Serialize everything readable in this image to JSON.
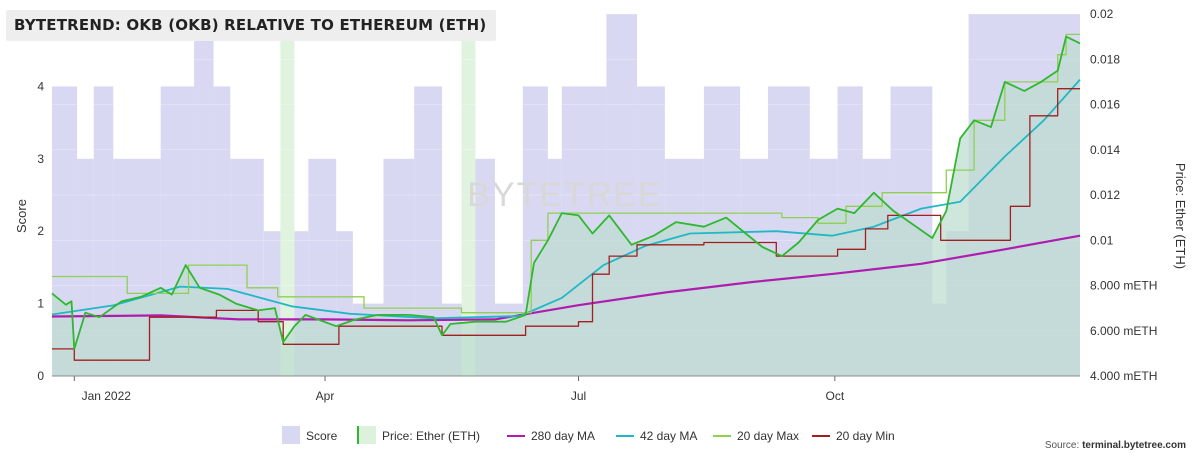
{
  "title": "BYTETREND: OKB (OKB) RELATIVE TO ETHEREUM (ETH)",
  "watermark": "BYTETREE",
  "source_prefix": "Source: ",
  "source_site": "terminal.bytetree.com",
  "chart_data": {
    "type": "line",
    "x_tick_labels": [
      "Jan 2022",
      "Apr",
      "Jul",
      "Oct"
    ],
    "x_tick_dates": [
      "2022-01-01",
      "2022-04-01",
      "2022-07-01",
      "2022-10-01"
    ],
    "x_range": [
      "2021-12-24",
      "2022-12-28"
    ],
    "y_left": {
      "label": "Score",
      "range": [
        0,
        5
      ],
      "ticks": [
        0,
        1,
        2,
        3,
        4
      ]
    },
    "y_right": {
      "label": "Price: Ether (ETH)",
      "range": [
        0.004,
        0.02
      ],
      "ticks": [
        0.004,
        0.006,
        0.008,
        0.01,
        0.012,
        0.014,
        0.016,
        0.018,
        0.02
      ],
      "tick_labels": [
        "4.000 mETH",
        "6.000 mETH",
        "8.000 mETH",
        "0.01",
        "0.012",
        "0.014",
        "0.016",
        "0.018",
        "0.02"
      ]
    },
    "legend_position": "bottom",
    "legend": [
      "Score",
      "Price: Ether (ETH)",
      "280 day MA",
      "42 day MA",
      "20 day Max",
      "20 day Min"
    ],
    "colors": {
      "score": "#d8d8f2",
      "price": "#2fb82f",
      "price_fill": "#bcdccf",
      "ma280": "#b01cb0",
      "ma42": "#21b8c6",
      "max20": "#8fd14f",
      "min20": "#a31f1f",
      "score_low": "#dcf2dc"
    },
    "score_series": [
      {
        "date": "2021-12-24",
        "score": 4
      },
      {
        "date": "2022-01-02",
        "score": 3
      },
      {
        "date": "2022-01-08",
        "score": 4
      },
      {
        "date": "2022-01-15",
        "score": 3
      },
      {
        "date": "2022-02-01",
        "score": 4
      },
      {
        "date": "2022-02-13",
        "score": 5
      },
      {
        "date": "2022-02-20",
        "score": 4
      },
      {
        "date": "2022-02-26",
        "score": 3
      },
      {
        "date": "2022-03-10",
        "score": 2
      },
      {
        "date": "2022-03-16",
        "score": 0
      },
      {
        "date": "2022-03-21",
        "score": 2
      },
      {
        "date": "2022-03-26",
        "score": 3
      },
      {
        "date": "2022-04-05",
        "score": 2
      },
      {
        "date": "2022-04-11",
        "score": 1
      },
      {
        "date": "2022-04-22",
        "score": 3
      },
      {
        "date": "2022-05-03",
        "score": 4
      },
      {
        "date": "2022-05-13",
        "score": 1
      },
      {
        "date": "2022-05-20",
        "score": 0
      },
      {
        "date": "2022-05-25",
        "score": 3
      },
      {
        "date": "2022-06-01",
        "score": 1
      },
      {
        "date": "2022-06-11",
        "score": 4
      },
      {
        "date": "2022-06-20",
        "score": 3
      },
      {
        "date": "2022-06-25",
        "score": 4
      },
      {
        "date": "2022-07-11",
        "score": 5
      },
      {
        "date": "2022-07-22",
        "score": 4
      },
      {
        "date": "2022-08-01",
        "score": 3
      },
      {
        "date": "2022-08-15",
        "score": 4
      },
      {
        "date": "2022-08-28",
        "score": 3
      },
      {
        "date": "2022-09-07",
        "score": 4
      },
      {
        "date": "2022-09-22",
        "score": 3
      },
      {
        "date": "2022-10-02",
        "score": 4
      },
      {
        "date": "2022-10-11",
        "score": 3
      },
      {
        "date": "2022-10-21",
        "score": 4
      },
      {
        "date": "2022-11-05",
        "score": 1
      },
      {
        "date": "2022-11-10",
        "score": 2
      },
      {
        "date": "2022-11-18",
        "score": 5
      },
      {
        "date": "2022-12-28",
        "score": 5
      }
    ],
    "price_series": [
      {
        "date": "2021-12-24",
        "v": 0.00765
      },
      {
        "date": "2021-12-29",
        "v": 0.00715
      },
      {
        "date": "2021-12-31",
        "v": 0.0073
      },
      {
        "date": "2022-01-01",
        "v": 0.0052
      },
      {
        "date": "2022-01-05",
        "v": 0.0068
      },
      {
        "date": "2022-01-10",
        "v": 0.0066
      },
      {
        "date": "2022-01-18",
        "v": 0.0073
      },
      {
        "date": "2022-01-25",
        "v": 0.0075
      },
      {
        "date": "2022-02-01",
        "v": 0.0079
      },
      {
        "date": "2022-02-05",
        "v": 0.0076
      },
      {
        "date": "2022-02-10",
        "v": 0.0089
      },
      {
        "date": "2022-02-15",
        "v": 0.0079
      },
      {
        "date": "2022-02-22",
        "v": 0.0076
      },
      {
        "date": "2022-02-28",
        "v": 0.0072
      },
      {
        "date": "2022-03-08",
        "v": 0.0069
      },
      {
        "date": "2022-03-14",
        "v": 0.007
      },
      {
        "date": "2022-03-17",
        "v": 0.0055
      },
      {
        "date": "2022-03-21",
        "v": 0.0062
      },
      {
        "date": "2022-03-25",
        "v": 0.0067
      },
      {
        "date": "2022-04-05",
        "v": 0.0062
      },
      {
        "date": "2022-04-12",
        "v": 0.0065
      },
      {
        "date": "2022-04-20",
        "v": 0.0067
      },
      {
        "date": "2022-05-01",
        "v": 0.0067
      },
      {
        "date": "2022-05-10",
        "v": 0.0066
      },
      {
        "date": "2022-05-13",
        "v": 0.0058
      },
      {
        "date": "2022-05-16",
        "v": 0.0063
      },
      {
        "date": "2022-05-25",
        "v": 0.0064
      },
      {
        "date": "2022-06-05",
        "v": 0.0064
      },
      {
        "date": "2022-06-12",
        "v": 0.0067
      },
      {
        "date": "2022-06-15",
        "v": 0.009
      },
      {
        "date": "2022-06-20",
        "v": 0.01
      },
      {
        "date": "2022-06-25",
        "v": 0.0112
      },
      {
        "date": "2022-07-01",
        "v": 0.0111
      },
      {
        "date": "2022-07-06",
        "v": 0.0103
      },
      {
        "date": "2022-07-12",
        "v": 0.0111
      },
      {
        "date": "2022-07-20",
        "v": 0.0098
      },
      {
        "date": "2022-07-28",
        "v": 0.0102
      },
      {
        "date": "2022-08-05",
        "v": 0.0108
      },
      {
        "date": "2022-08-15",
        "v": 0.0106
      },
      {
        "date": "2022-08-23",
        "v": 0.011
      },
      {
        "date": "2022-08-30",
        "v": 0.0103
      },
      {
        "date": "2022-09-05",
        "v": 0.0097
      },
      {
        "date": "2022-09-12",
        "v": 0.0093
      },
      {
        "date": "2022-09-18",
        "v": 0.0099
      },
      {
        "date": "2022-09-25",
        "v": 0.0109
      },
      {
        "date": "2022-10-02",
        "v": 0.0114
      },
      {
        "date": "2022-10-08",
        "v": 0.0112
      },
      {
        "date": "2022-10-15",
        "v": 0.0121
      },
      {
        "date": "2022-10-22",
        "v": 0.0113
      },
      {
        "date": "2022-10-29",
        "v": 0.0107
      },
      {
        "date": "2022-11-05",
        "v": 0.0101
      },
      {
        "date": "2022-11-10",
        "v": 0.0113
      },
      {
        "date": "2022-11-15",
        "v": 0.0145
      },
      {
        "date": "2022-11-20",
        "v": 0.0153
      },
      {
        "date": "2022-11-26",
        "v": 0.015
      },
      {
        "date": "2022-12-01",
        "v": 0.017
      },
      {
        "date": "2022-12-08",
        "v": 0.0166
      },
      {
        "date": "2022-12-14",
        "v": 0.017
      },
      {
        "date": "2022-12-20",
        "v": 0.0175
      },
      {
        "date": "2022-12-23",
        "v": 0.019
      },
      {
        "date": "2022-12-28",
        "v": 0.0187
      }
    ],
    "ma280_series": [
      {
        "date": "2021-12-24",
        "v": 0.00663
      },
      {
        "date": "2022-02-01",
        "v": 0.00668
      },
      {
        "date": "2022-03-01",
        "v": 0.0065
      },
      {
        "date": "2022-04-01",
        "v": 0.0065
      },
      {
        "date": "2022-05-01",
        "v": 0.00646
      },
      {
        "date": "2022-06-01",
        "v": 0.0065
      },
      {
        "date": "2022-07-01",
        "v": 0.00713
      },
      {
        "date": "2022-08-01",
        "v": 0.00769
      },
      {
        "date": "2022-09-01",
        "v": 0.00815
      },
      {
        "date": "2022-10-01",
        "v": 0.00852
      },
      {
        "date": "2022-11-01",
        "v": 0.00896
      },
      {
        "date": "2022-12-01",
        "v": 0.0096
      },
      {
        "date": "2022-12-28",
        "v": 0.0102
      }
    ],
    "ma42_series": [
      {
        "date": "2021-12-24",
        "v": 0.00672
      },
      {
        "date": "2022-01-15",
        "v": 0.00712
      },
      {
        "date": "2022-02-08",
        "v": 0.00795
      },
      {
        "date": "2022-02-25",
        "v": 0.00785
      },
      {
        "date": "2022-03-20",
        "v": 0.00708
      },
      {
        "date": "2022-04-10",
        "v": 0.00675
      },
      {
        "date": "2022-05-10",
        "v": 0.00655
      },
      {
        "date": "2022-06-10",
        "v": 0.00665
      },
      {
        "date": "2022-06-25",
        "v": 0.00745
      },
      {
        "date": "2022-07-10",
        "v": 0.0089
      },
      {
        "date": "2022-07-25",
        "v": 0.00975
      },
      {
        "date": "2022-08-10",
        "v": 0.0103
      },
      {
        "date": "2022-09-10",
        "v": 0.0104
      },
      {
        "date": "2022-09-30",
        "v": 0.0102
      },
      {
        "date": "2022-10-15",
        "v": 0.0106
      },
      {
        "date": "2022-11-01",
        "v": 0.0114
      },
      {
        "date": "2022-11-15",
        "v": 0.0117
      },
      {
        "date": "2022-12-01",
        "v": 0.0137
      },
      {
        "date": "2022-12-15",
        "v": 0.0153
      },
      {
        "date": "2022-12-28",
        "v": 0.0171
      }
    ],
    "max20_series": [
      {
        "date": "2021-12-24",
        "v": 0.0084
      },
      {
        "date": "2022-01-18",
        "v": 0.0084
      },
      {
        "date": "2022-01-20",
        "v": 0.00765
      },
      {
        "date": "2022-02-10",
        "v": 0.00765
      },
      {
        "date": "2022-02-11",
        "v": 0.0089
      },
      {
        "date": "2022-03-02",
        "v": 0.0089
      },
      {
        "date": "2022-03-04",
        "v": 0.0079
      },
      {
        "date": "2022-03-15",
        "v": 0.0075
      },
      {
        "date": "2022-04-15",
        "v": 0.007
      },
      {
        "date": "2022-05-20",
        "v": 0.0068
      },
      {
        "date": "2022-06-12",
        "v": 0.0068
      },
      {
        "date": "2022-06-14",
        "v": 0.01
      },
      {
        "date": "2022-06-20",
        "v": 0.0112
      },
      {
        "date": "2022-07-22",
        "v": 0.0112
      },
      {
        "date": "2022-08-20",
        "v": 0.0112
      },
      {
        "date": "2022-09-10",
        "v": 0.0112
      },
      {
        "date": "2022-09-12",
        "v": 0.011
      },
      {
        "date": "2022-09-25",
        "v": 0.01075
      },
      {
        "date": "2022-10-05",
        "v": 0.0115
      },
      {
        "date": "2022-10-18",
        "v": 0.0121
      },
      {
        "date": "2022-11-05",
        "v": 0.0121
      },
      {
        "date": "2022-11-10",
        "v": 0.0131
      },
      {
        "date": "2022-11-20",
        "v": 0.0153
      },
      {
        "date": "2022-12-01",
        "v": 0.017
      },
      {
        "date": "2022-12-20",
        "v": 0.0182
      },
      {
        "date": "2022-12-23",
        "v": 0.0191
      },
      {
        "date": "2022-12-28",
        "v": 0.0191
      }
    ],
    "min20_series": [
      {
        "date": "2021-12-24",
        "v": 0.0052
      },
      {
        "date": "2021-12-31",
        "v": 0.0052
      },
      {
        "date": "2022-01-01",
        "v": 0.0047
      },
      {
        "date": "2022-01-27",
        "v": 0.0047
      },
      {
        "date": "2022-01-28",
        "v": 0.0066
      },
      {
        "date": "2022-02-19",
        "v": 0.0066
      },
      {
        "date": "2022-02-21",
        "v": 0.0069
      },
      {
        "date": "2022-03-07",
        "v": 0.0069
      },
      {
        "date": "2022-03-08",
        "v": 0.0064
      },
      {
        "date": "2022-03-16",
        "v": 0.0064
      },
      {
        "date": "2022-03-17",
        "v": 0.0054
      },
      {
        "date": "2022-04-05",
        "v": 0.0054
      },
      {
        "date": "2022-04-06",
        "v": 0.0062
      },
      {
        "date": "2022-05-12",
        "v": 0.0062
      },
      {
        "date": "2022-05-13",
        "v": 0.0058
      },
      {
        "date": "2022-06-10",
        "v": 0.0058
      },
      {
        "date": "2022-06-12",
        "v": 0.0062
      },
      {
        "date": "2022-07-01",
        "v": 0.0064
      },
      {
        "date": "2022-07-06",
        "v": 0.0085
      },
      {
        "date": "2022-07-12",
        "v": 0.0093
      },
      {
        "date": "2022-07-22",
        "v": 0.0098
      },
      {
        "date": "2022-08-02",
        "v": 0.0098
      },
      {
        "date": "2022-08-15",
        "v": 0.0099
      },
      {
        "date": "2022-09-05",
        "v": 0.0099
      },
      {
        "date": "2022-09-10",
        "v": 0.0093
      },
      {
        "date": "2022-09-25",
        "v": 0.0093
      },
      {
        "date": "2022-10-02",
        "v": 0.0096
      },
      {
        "date": "2022-10-12",
        "v": 0.0105
      },
      {
        "date": "2022-10-20",
        "v": 0.0111
      },
      {
        "date": "2022-11-05",
        "v": 0.0111
      },
      {
        "date": "2022-11-08",
        "v": 0.01
      },
      {
        "date": "2022-11-28",
        "v": 0.01
      },
      {
        "date": "2022-12-03",
        "v": 0.0115
      },
      {
        "date": "2022-12-10",
        "v": 0.0155
      },
      {
        "date": "2022-12-20",
        "v": 0.0167
      },
      {
        "date": "2022-12-28",
        "v": 0.0167
      }
    ]
  }
}
